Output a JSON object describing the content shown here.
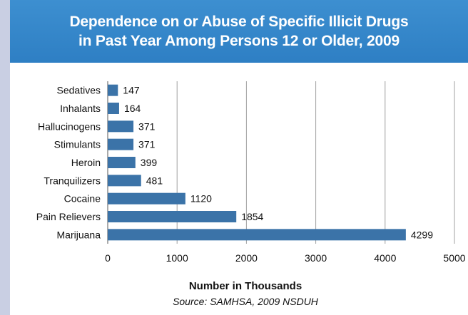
{
  "chart_data": {
    "type": "bar",
    "orientation": "horizontal",
    "title": "Dependence on or Abuse of Specific Illicit Drugs in Past Year Among Persons 12 or Older, 2009",
    "title_lines": [
      "Dependence on or Abuse of Specific Illicit Drugs",
      "in Past Year Among Persons 12 or Older, 2009"
    ],
    "categories": [
      "Sedatives",
      "Inhalants",
      "Hallucinogens",
      "Stimulants",
      "Heroin",
      "Tranquilizers",
      "Cocaine",
      "Pain Relievers",
      "Marijuana"
    ],
    "values": [
      147,
      164,
      371,
      371,
      399,
      481,
      1120,
      1854,
      4299
    ],
    "xlabel": "Number in Thousands",
    "source": "Source: SAMHSA, 2009 NSDUH",
    "xlim": [
      0,
      5000
    ],
    "xticks": [
      0,
      1000,
      2000,
      3000,
      4000,
      5000
    ],
    "grid": true,
    "colors": {
      "bar": "#3b73a8",
      "header": "#2e7fc4",
      "grid": "#a0a0a0"
    }
  }
}
